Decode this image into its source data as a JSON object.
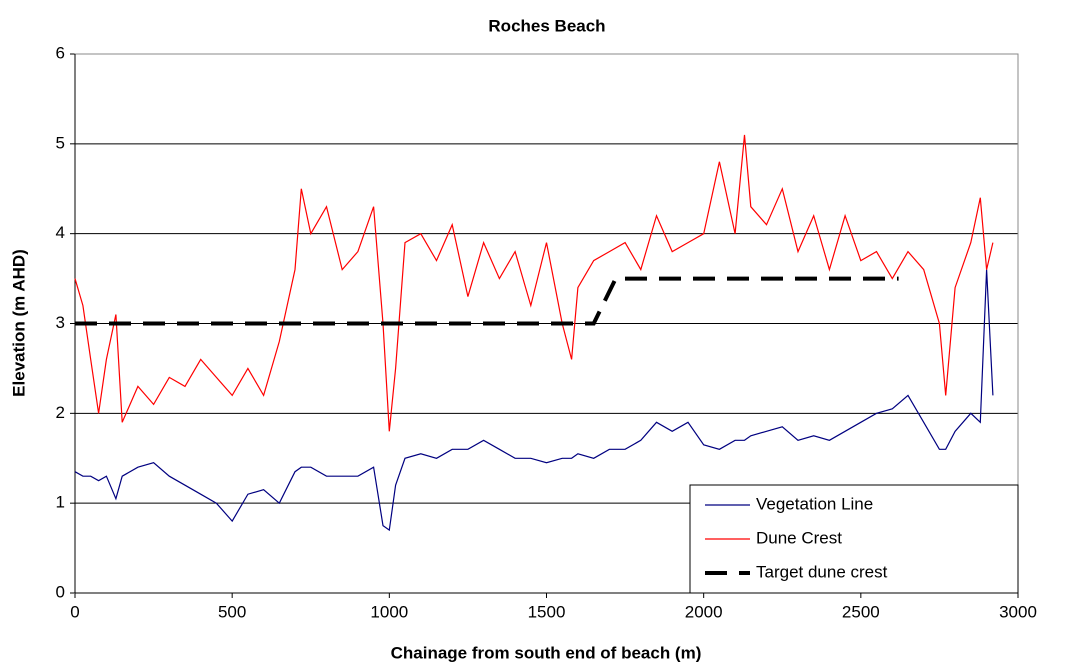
{
  "chart_data": {
    "type": "line",
    "title": "Roches Beach",
    "x_label": "Chainage from south end of beach (m)",
    "y_label": "Elevation (m AHD)",
    "x": [
      0,
      25,
      50,
      75,
      100,
      130,
      150,
      200,
      250,
      300,
      350,
      400,
      450,
      500,
      550,
      600,
      650,
      700,
      720,
      750,
      800,
      850,
      900,
      950,
      980,
      1000,
      1020,
      1050,
      1100,
      1150,
      1200,
      1250,
      1300,
      1350,
      1400,
      1450,
      1500,
      1550,
      1580,
      1600,
      1650,
      1700,
      1750,
      1800,
      1850,
      1900,
      1950,
      2000,
      2050,
      2100,
      2130,
      2150,
      2200,
      2250,
      2300,
      2350,
      2400,
      2450,
      2500,
      2550,
      2600,
      2650,
      2700,
      2750,
      2770,
      2800,
      2850,
      2880,
      2900,
      2920
    ],
    "series": [
      {
        "name": "Vegetation Line",
        "color": "#000080",
        "values": [
          1.35,
          1.3,
          1.3,
          1.25,
          1.3,
          1.05,
          1.3,
          1.4,
          1.45,
          1.3,
          1.2,
          1.1,
          1.0,
          0.8,
          1.1,
          1.15,
          1.0,
          1.35,
          1.4,
          1.4,
          1.3,
          1.3,
          1.3,
          1.4,
          0.75,
          0.7,
          1.2,
          1.5,
          1.55,
          1.5,
          1.6,
          1.6,
          1.7,
          1.6,
          1.5,
          1.5,
          1.45,
          1.5,
          1.5,
          1.55,
          1.5,
          1.6,
          1.6,
          1.7,
          1.9,
          1.8,
          1.9,
          1.65,
          1.6,
          1.7,
          1.7,
          1.75,
          1.8,
          1.85,
          1.7,
          1.75,
          1.7,
          1.8,
          1.9,
          2.0,
          2.05,
          2.2,
          1.9,
          1.6,
          1.6,
          1.8,
          2.0,
          1.9,
          3.6,
          2.2
        ]
      },
      {
        "name": "Dune Crest",
        "color": "#ff0000",
        "values": [
          3.5,
          3.2,
          2.6,
          2.0,
          2.6,
          3.1,
          1.9,
          2.3,
          2.1,
          2.4,
          2.3,
          2.6,
          2.4,
          2.2,
          2.5,
          2.2,
          2.8,
          3.6,
          4.5,
          4.0,
          4.3,
          3.6,
          3.8,
          4.3,
          3.0,
          1.8,
          2.5,
          3.9,
          4.0,
          3.7,
          4.1,
          3.3,
          3.9,
          3.5,
          3.8,
          3.2,
          3.9,
          3.0,
          2.6,
          3.4,
          3.7,
          3.8,
          3.9,
          3.6,
          4.2,
          3.8,
          3.9,
          4.0,
          4.8,
          4.0,
          5.1,
          4.3,
          4.1,
          4.5,
          3.8,
          4.2,
          3.6,
          4.2,
          3.7,
          3.8,
          3.5,
          3.8,
          3.6,
          3.0,
          2.2,
          3.4,
          3.9,
          4.4,
          3.6,
          3.9
        ]
      },
      {
        "name": "Target dune crest",
        "color": "#000000",
        "dashed": true,
        "x": [
          0,
          1650,
          1720,
          2620
        ],
        "values": [
          3,
          3,
          3.5,
          3.5
        ]
      }
    ],
    "xlim": [
      0,
      3000
    ],
    "xticks": [
      0,
      500,
      1000,
      1500,
      2000,
      2500,
      3000
    ],
    "ylim": [
      0,
      6
    ],
    "yticks": [
      0,
      1,
      2,
      3,
      4,
      5,
      6
    ],
    "grid": true,
    "legend": "lower right"
  }
}
